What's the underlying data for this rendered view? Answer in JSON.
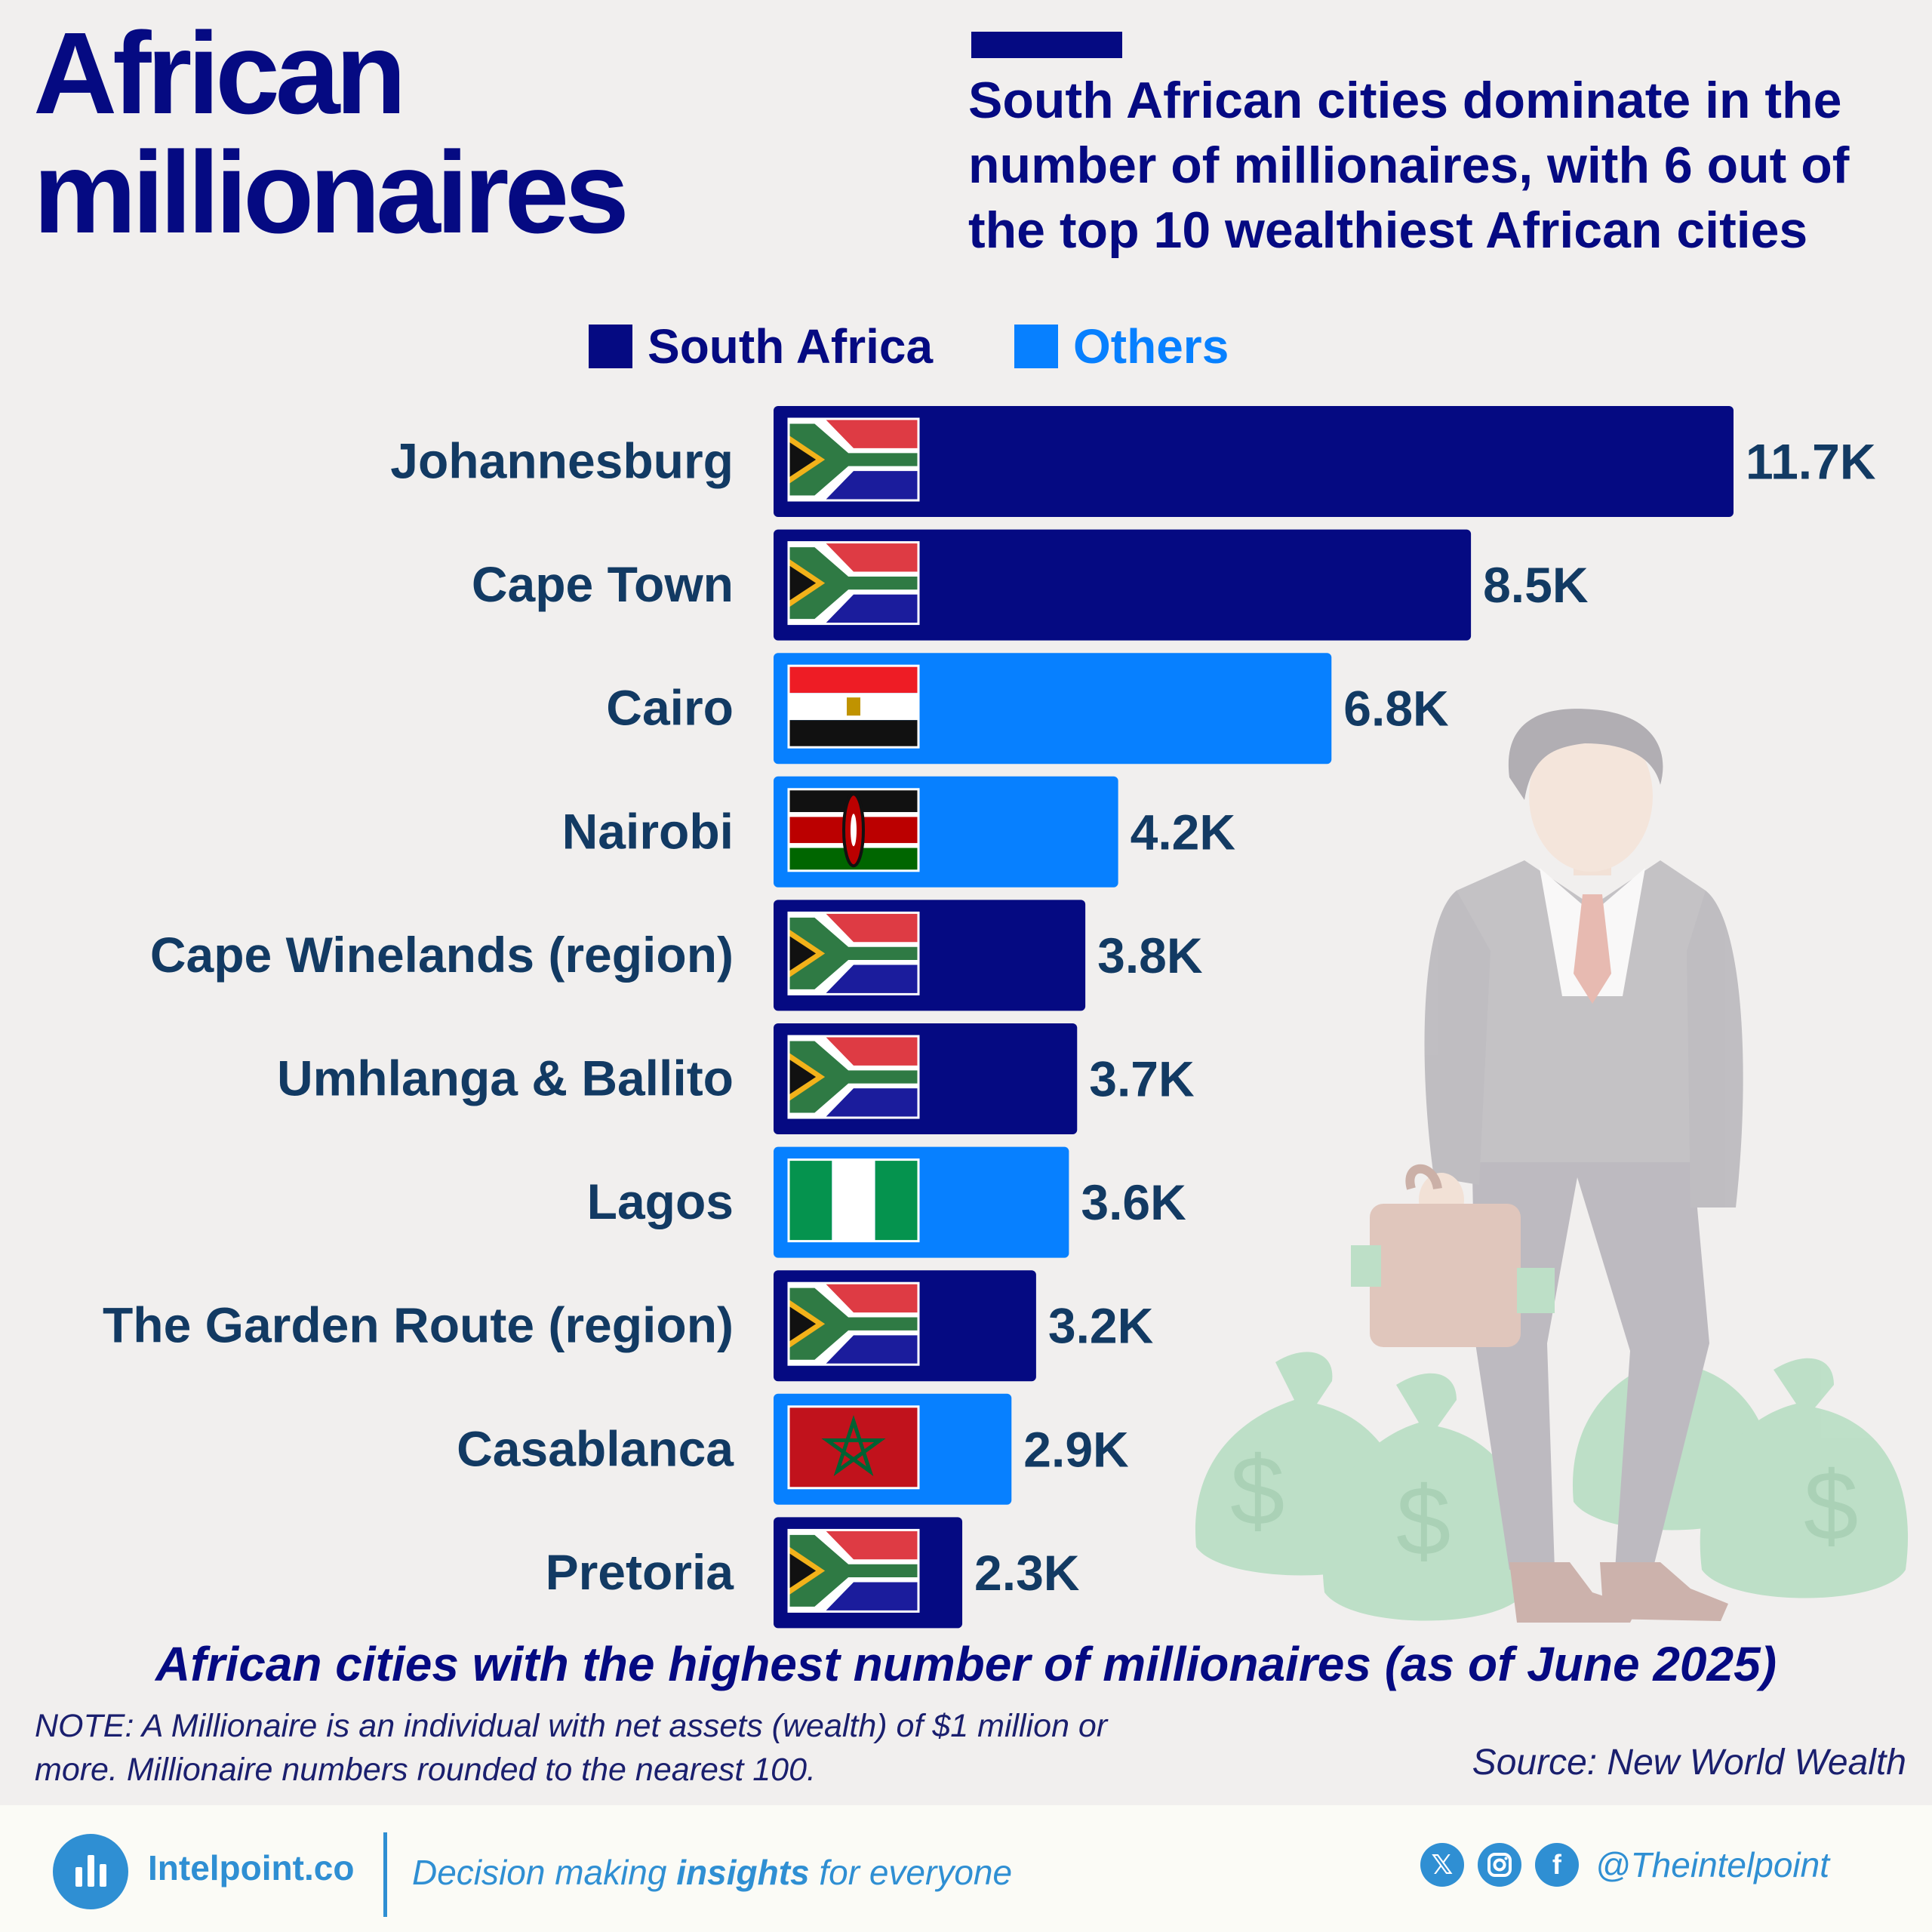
{
  "header": {
    "title_line1": "African",
    "title_line2": "millionaires",
    "subtitle": "South African cities dominate in the number of millionaires, with 6 out of the top 10 wealthiest African cities"
  },
  "legend": [
    {
      "label": "South Africa",
      "color": "#050a82"
    },
    {
      "label": "Others",
      "color": "#0780ff"
    }
  ],
  "colors": {
    "title": "#050a82",
    "city_label": "#123a63",
    "value_label": "#123a63",
    "south_africa_bar": "#050a82",
    "others_bar": "#0780ff"
  },
  "chart_data": {
    "type": "bar",
    "orientation": "horizontal",
    "categories": [
      "Johannesburg",
      "Cape Town",
      "Cairo",
      "Nairobi",
      "Cape Winelands (region)",
      "Umhlanga & Ballito",
      "Lagos",
      "The Garden Route (region)",
      "Casablanca",
      "Pretoria"
    ],
    "values": [
      11.7,
      8.5,
      6.8,
      4.2,
      3.8,
      3.7,
      3.6,
      3.2,
      2.9,
      2.3
    ],
    "value_labels": [
      "11.7K",
      "8.5K",
      "6.8K",
      "4.2K",
      "3.8K",
      "3.7K",
      "3.6K",
      "3.2K",
      "2.9K",
      "2.3K"
    ],
    "groups": [
      "South Africa",
      "South Africa",
      "Others",
      "Others",
      "South Africa",
      "South Africa",
      "Others",
      "South Africa",
      "Others",
      "South Africa"
    ],
    "flags": [
      "south-africa-flag",
      "south-africa-flag",
      "egypt-flag",
      "kenya-flag",
      "south-africa-flag",
      "south-africa-flag",
      "nigeria-flag",
      "south-africa-flag",
      "morocco-flag",
      "south-africa-flag"
    ],
    "unit": "thousand millionaires",
    "xlim": [
      0,
      11.7
    ],
    "grid": false,
    "legend_position": "top",
    "title": "African cities with the highest number of millionaires (as of June 2025)"
  },
  "note": "NOTE: A Millionaire is an individual with net assets (wealth) of $1 million or more. Millionaire numbers rounded to the nearest 100.",
  "source": "Source: New World Wealth",
  "footer": {
    "brand": "Intelpoint.co",
    "tagline_pre": "Decision making ",
    "tagline_bold": "insights",
    "tagline_post": " for everyone",
    "social_icons": [
      "x-icon",
      "instagram-icon",
      "facebook-icon"
    ],
    "handle": "@Theintelpoint"
  }
}
